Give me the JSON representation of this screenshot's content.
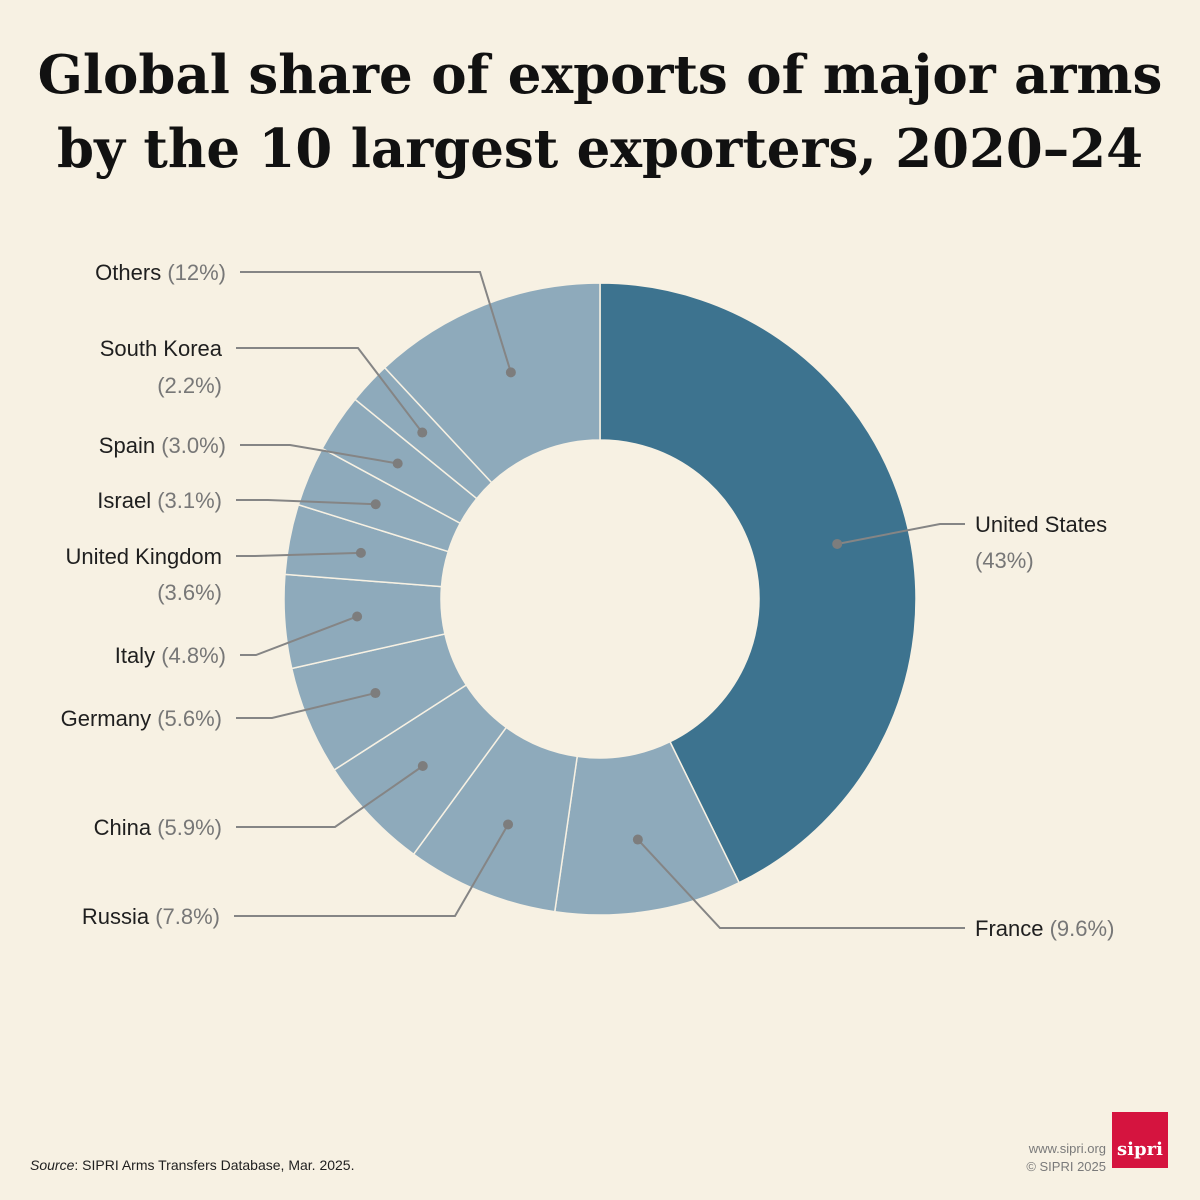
{
  "chart_data": {
    "type": "pie",
    "donut": true,
    "title_line1": "Global share of exports of major arms",
    "title_line2": "by the 10 largest exporters, 2020–24",
    "series": [
      {
        "name": "United States",
        "value": 43,
        "label": "(43%)",
        "highlight": true
      },
      {
        "name": "France",
        "value": 9.6,
        "label": "(9.6%)"
      },
      {
        "name": "Russia",
        "value": 7.8,
        "label": "(7.8%)"
      },
      {
        "name": "China",
        "value": 5.9,
        "label": "(5.9%)"
      },
      {
        "name": "Germany",
        "value": 5.6,
        "label": "(5.6%)"
      },
      {
        "name": "Italy",
        "value": 4.8,
        "label": "(4.8%)"
      },
      {
        "name": "United Kingdom",
        "value": 3.6,
        "label": "(3.6%)"
      },
      {
        "name": "Israel",
        "value": 3.1,
        "label": "(3.1%)"
      },
      {
        "name": "Spain",
        "value": 3.0,
        "label": "(3.0%)"
      },
      {
        "name": "South Korea",
        "value": 2.2,
        "label": "(2.2%)"
      },
      {
        "name": "Others",
        "value": 12,
        "label": "(12%)"
      }
    ],
    "colors": {
      "highlight": "#3d738f",
      "other": "#8eaabb",
      "leader": "#858585",
      "background": "#f7f1e3"
    }
  },
  "footer": {
    "source_label": "Source",
    "source_text": ": SIPRI Arms Transfers Database, Mar. 2025.",
    "website": "www.sipri.org",
    "copyright": "© SIPRI 2025",
    "logo_text": "sipri"
  }
}
